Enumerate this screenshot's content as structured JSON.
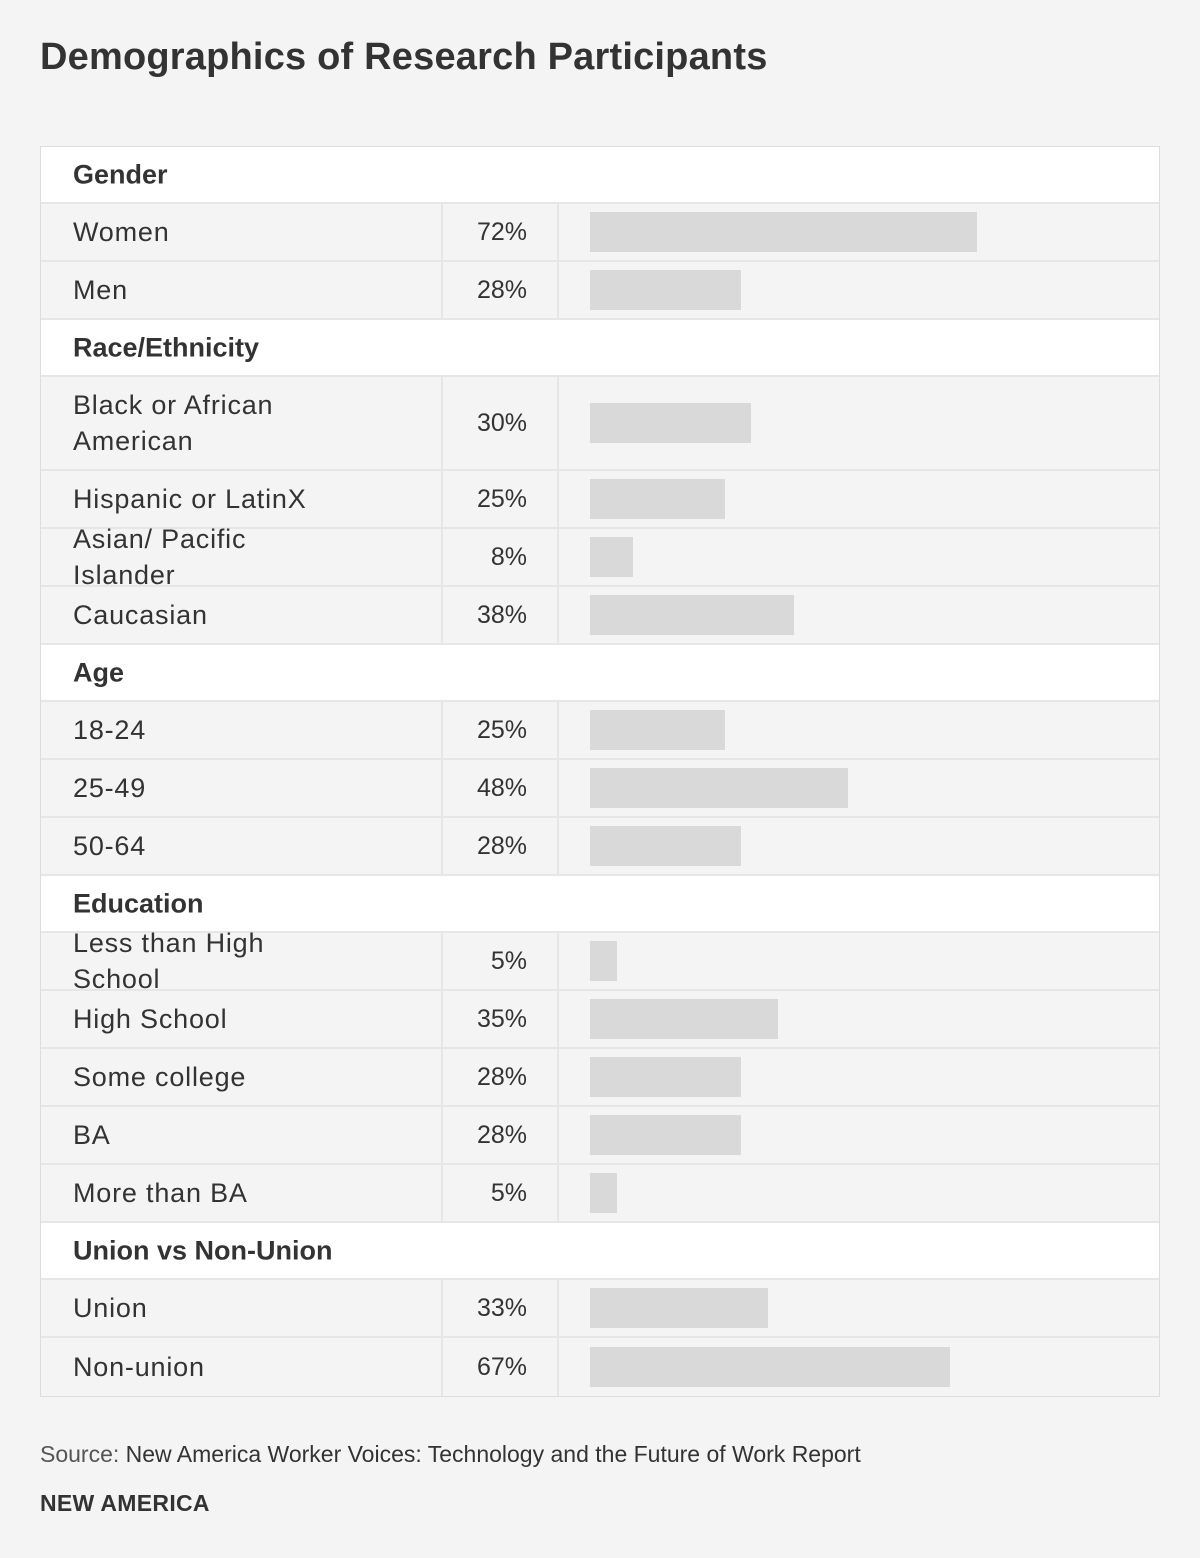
{
  "page_title": "Demographics of Research Participants",
  "source_label": "Source:",
  "source_text": "New America Worker Voices: Technology and the Future of Work Report",
  "brand": "NEW AMERICA",
  "colors": {
    "background": "#f4f4f4",
    "header_row": "#ffffff",
    "bar": "#d9d9d9",
    "text": "#333333"
  },
  "chart_data": {
    "type": "bar",
    "orientation": "horizontal",
    "title": "Demographics of Research Participants",
    "value_unit": "%",
    "xlim": [
      0,
      100
    ],
    "grid": false,
    "groups": [
      {
        "name": "Gender",
        "categories": [
          "Women",
          "Men"
        ],
        "values": [
          72,
          28
        ],
        "labels": [
          "72%",
          "28%"
        ]
      },
      {
        "name": "Race/Ethnicity",
        "categories": [
          "Black or African American",
          "Hispanic or LatinX",
          "Asian/ Pacific Islander",
          "Caucasian"
        ],
        "values": [
          30,
          25,
          8,
          38
        ],
        "labels": [
          "30%",
          "25%",
          "8%",
          "38%"
        ]
      },
      {
        "name": "Age",
        "categories": [
          "18-24",
          "25-49",
          "50-64"
        ],
        "values": [
          25,
          48,
          28
        ],
        "labels": [
          "25%",
          "48%",
          "28%"
        ]
      },
      {
        "name": "Education",
        "categories": [
          "Less than High School",
          "High School",
          "Some college",
          "BA",
          "More than BA"
        ],
        "values": [
          5,
          35,
          28,
          28,
          5
        ],
        "labels": [
          "5%",
          "35%",
          "28%",
          "28%",
          "5%"
        ]
      },
      {
        "name": "Union vs Non-Union",
        "categories": [
          "Union",
          "Non-union"
        ],
        "values": [
          33,
          67
        ],
        "labels": [
          "33%",
          "67%"
        ]
      }
    ]
  }
}
